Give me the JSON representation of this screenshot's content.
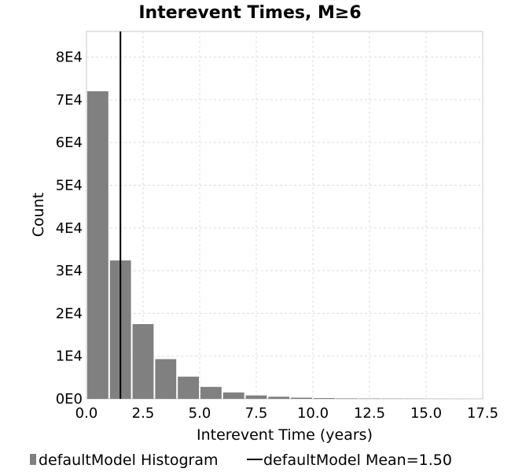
{
  "chart_data": {
    "type": "bar",
    "title": "Interevent Times, M≥6",
    "xlabel": "Interevent Time (years)",
    "ylabel": "Count",
    "xlim": [
      0,
      17.5
    ],
    "ylim": [
      0,
      86000
    ],
    "xticks": [
      0,
      2.5,
      5,
      7.5,
      10,
      12.5,
      15,
      17.5
    ],
    "xtick_labels": [
      "0.0",
      "2.5",
      "5.0",
      "7.5",
      "10.0",
      "12.5",
      "15.0",
      "17.5"
    ],
    "yticks": [
      0,
      10000,
      20000,
      30000,
      40000,
      50000,
      60000,
      70000,
      80000
    ],
    "ytick_labels": [
      "0E0",
      "1E4",
      "2E4",
      "3E4",
      "4E4",
      "5E4",
      "6E4",
      "7E4",
      "8E4"
    ],
    "grid": true,
    "bin_width": 1.0,
    "series": [
      {
        "name": "defaultModel Histogram",
        "type": "bar",
        "color": "#808080",
        "bins": [
          0.5,
          1.5,
          2.5,
          3.5,
          4.5,
          5.5,
          6.5,
          7.5,
          8.5,
          9.5,
          10.5,
          11.5,
          12.5,
          13.5,
          14.5,
          15.5,
          16.5
        ],
        "values": [
          72000,
          32400,
          17500,
          9300,
          5200,
          2800,
          1500,
          800,
          500,
          280,
          180,
          110,
          80,
          50,
          30,
          20,
          10
        ]
      },
      {
        "name": "defaultModel Mean=1.50",
        "type": "vline",
        "color": "#000000",
        "x": 1.5
      }
    ],
    "legend": {
      "placement": "bottom",
      "entries": [
        "defaultModel Histogram",
        "defaultModel Mean=1.50"
      ]
    }
  }
}
